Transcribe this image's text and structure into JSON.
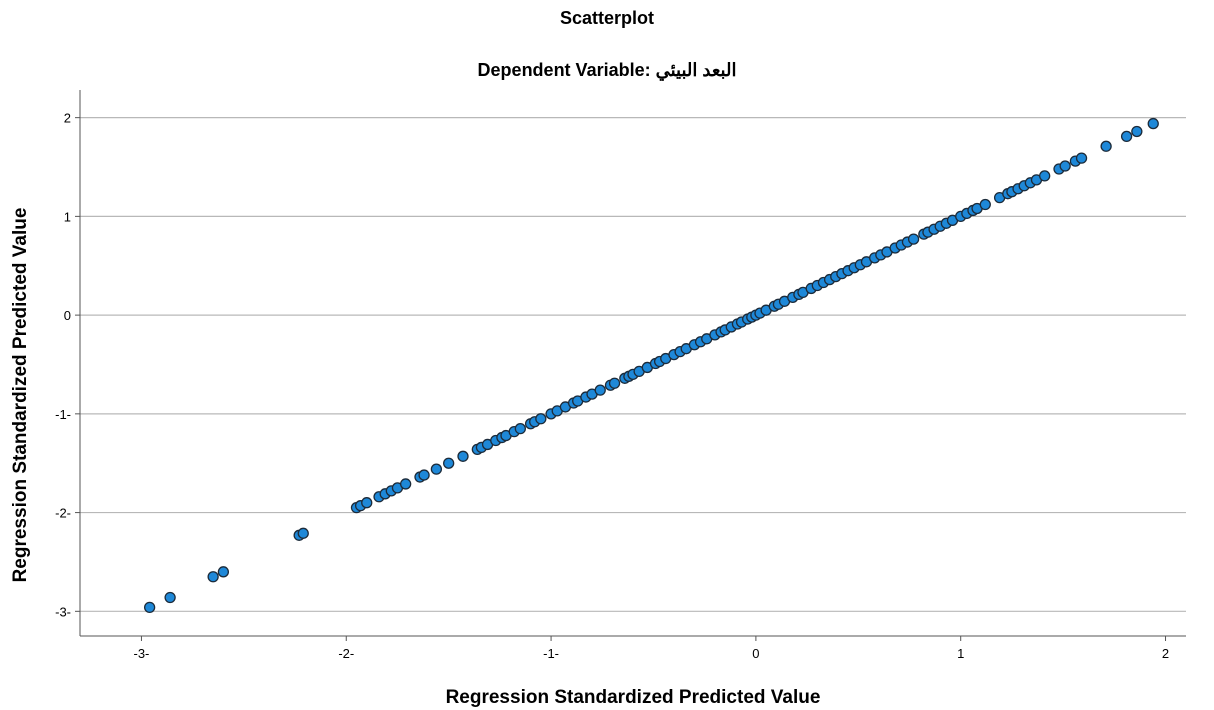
{
  "chart_data": {
    "type": "scatter",
    "title": "Scatterplot",
    "subtitle": "Dependent Variable: البعد البيئي",
    "xlabel": "Regression Standardized Predicted Value",
    "ylabel": "Regression Standardized Predicted Value",
    "xlim": [
      -3.3,
      2.1
    ],
    "ylim": [
      -3.25,
      2.28
    ],
    "x_ticks": [
      -3,
      -2,
      -1,
      0,
      1,
      2
    ],
    "x_tick_labels": [
      "-3-",
      "-2-",
      "-1-",
      "0",
      "1",
      "2"
    ],
    "y_ticks": [
      -3,
      -2,
      -1,
      0,
      1,
      2
    ],
    "y_tick_labels": [
      "-3-",
      "-2-",
      "-1-",
      "0",
      "1",
      "2"
    ],
    "grid": "horizontal",
    "legend": "none",
    "marker_color": "#1e88d8",
    "marker_edge_color": "#1c2b3a",
    "x": [
      -2.96,
      -2.86,
      -2.65,
      -2.6,
      -2.23,
      -2.21,
      -1.95,
      -1.93,
      -1.9,
      -1.84,
      -1.81,
      -1.78,
      -1.75,
      -1.71,
      -1.64,
      -1.62,
      -1.56,
      -1.5,
      -1.43,
      -1.36,
      -1.34,
      -1.31,
      -1.27,
      -1.24,
      -1.22,
      -1.18,
      -1.15,
      -1.1,
      -1.08,
      -1.05,
      -1.0,
      -0.97,
      -0.93,
      -0.89,
      -0.87,
      -0.83,
      -0.8,
      -0.76,
      -0.71,
      -0.69,
      -0.64,
      -0.62,
      -0.6,
      -0.57,
      -0.53,
      -0.49,
      -0.47,
      -0.44,
      -0.4,
      -0.37,
      -0.34,
      -0.3,
      -0.27,
      -0.24,
      -0.2,
      -0.17,
      -0.15,
      -0.12,
      -0.09,
      -0.07,
      -0.04,
      -0.02,
      0.0,
      0.02,
      0.05,
      0.09,
      0.11,
      0.14,
      0.18,
      0.21,
      0.23,
      0.27,
      0.3,
      0.33,
      0.36,
      0.39,
      0.42,
      0.45,
      0.48,
      0.51,
      0.54,
      0.58,
      0.61,
      0.64,
      0.68,
      0.71,
      0.74,
      0.77,
      0.82,
      0.84,
      0.87,
      0.9,
      0.93,
      0.96,
      1.0,
      1.03,
      1.06,
      1.08,
      1.12,
      1.19,
      1.23,
      1.25,
      1.28,
      1.31,
      1.34,
      1.37,
      1.41,
      1.48,
      1.51,
      1.56,
      1.59,
      1.71,
      1.81,
      1.86,
      1.94
    ],
    "y": [
      -2.96,
      -2.86,
      -2.65,
      -2.6,
      -2.23,
      -2.21,
      -1.95,
      -1.93,
      -1.9,
      -1.84,
      -1.81,
      -1.78,
      -1.75,
      -1.71,
      -1.64,
      -1.62,
      -1.56,
      -1.5,
      -1.43,
      -1.36,
      -1.34,
      -1.31,
      -1.27,
      -1.24,
      -1.22,
      -1.18,
      -1.15,
      -1.1,
      -1.08,
      -1.05,
      -1.0,
      -0.97,
      -0.93,
      -0.89,
      -0.87,
      -0.83,
      -0.8,
      -0.76,
      -0.71,
      -0.69,
      -0.64,
      -0.62,
      -0.6,
      -0.57,
      -0.53,
      -0.49,
      -0.47,
      -0.44,
      -0.4,
      -0.37,
      -0.34,
      -0.3,
      -0.27,
      -0.24,
      -0.2,
      -0.17,
      -0.15,
      -0.12,
      -0.09,
      -0.07,
      -0.04,
      -0.02,
      0.0,
      0.02,
      0.05,
      0.09,
      0.11,
      0.14,
      0.18,
      0.21,
      0.23,
      0.27,
      0.3,
      0.33,
      0.36,
      0.39,
      0.42,
      0.45,
      0.48,
      0.51,
      0.54,
      0.58,
      0.61,
      0.64,
      0.68,
      0.71,
      0.74,
      0.77,
      0.82,
      0.84,
      0.87,
      0.9,
      0.93,
      0.96,
      1.0,
      1.03,
      1.06,
      1.08,
      1.12,
      1.19,
      1.23,
      1.25,
      1.28,
      1.31,
      1.34,
      1.37,
      1.41,
      1.48,
      1.51,
      1.56,
      1.59,
      1.71,
      1.81,
      1.86,
      1.94
    ]
  }
}
